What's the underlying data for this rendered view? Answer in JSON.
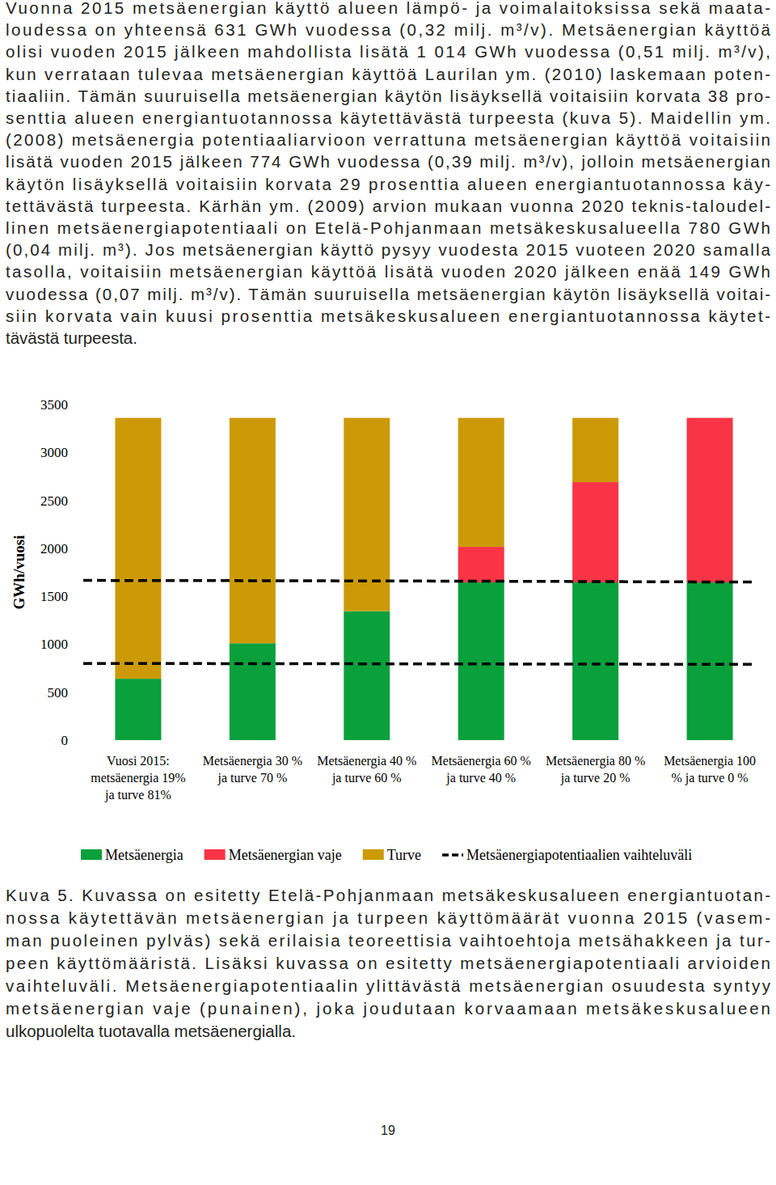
{
  "paragraph": {
    "lines": [
      "Vuonna 2015 metsäenergian käyttö alueen lämpö- ja voimalaitoksissa sekä maata-",
      "loudessa on yhteensä 631 GWh vuodessa (0,32 milj. m³/v). Metsäenergian käyttöä",
      "olisi vuoden 2015 jälkeen mahdollista lisätä 1 014 GWh vuodessa (0,51 milj. m³/v),",
      "kun verrataan tulevaa metsäenergian käyttöä Laurilan ym. (2010) laskemaan poten-",
      "tiaaliin. Tämän suuruisella metsäenergian käytön lisäyksellä voitaisiin korvata 38 pro-",
      "senttia alueen energiantuotannossa käytettävästä turpeesta (kuva 5). Maidellin ym.",
      "(2008) metsäenergia potentiaaliarvioon verrattuna metsäenergian käyttöä voitaisiin",
      "lisätä vuoden 2015 jälkeen 774 GWh vuodessa (0,39 milj. m³/v), jolloin metsäenergian",
      "käytön lisäyksellä voitaisiin korvata 29 prosenttia alueen energiantuotannossa käy-",
      "tettävästä turpeesta. Kärhän ym. (2009) arvion mukaan vuonna 2020 teknis-taloudel-",
      "linen metsäenergiapotentiaali on Etelä-Pohjanmaan metsäkeskusalueella 780 GWh",
      "(0,04 milj. m³). Jos metsäenergian käyttö pysyy vuodesta 2015 vuoteen 2020 samalla",
      "tasolla, voitaisiin metsäenergian käyttöä lisätä vuoden 2020 jälkeen enää 149 GWh",
      "vuodessa (0,07 milj. m³/v). Tämän suuruisella metsäenergian käytön lisäyksellä voitai-",
      "siin korvata vain kuusi prosenttia metsäkeskusalueen energiantuotannossa käytet-",
      "tävästä turpeesta."
    ]
  },
  "chart_data": {
    "type": "bar",
    "stacked": true,
    "y_label": "GWh/vuosi",
    "categories": [
      "Vuosi 2015:\nmetsäenergia 19%\nja turve 81%",
      "Metsäenergia 30 %\nja turve 70 %",
      "Metsäenergia 40 %\nja turve 60 %",
      "Metsäenergia 60 %\nja turve 40 %",
      "Metsäenergia 80 %\nja turve 20 %",
      "Metsäenergia 100\n% ja turve 0 %"
    ],
    "series": [
      {
        "name": "Metsäenergia",
        "color": "#0aa03c",
        "values": [
          640,
          1010,
          1345,
          1645,
          1645,
          1645
        ]
      },
      {
        "name": "Metsäenergian vaje",
        "color": "#f93446",
        "values": [
          0,
          0,
          0,
          370,
          1045,
          1715
        ]
      },
      {
        "name": "Turve",
        "color": "#cc9a06",
        "values": [
          2720,
          2350,
          2015,
          1345,
          670,
          0
        ]
      },
      {
        "name": "Metsäenergiapotentiaalien vaihteluväli",
        "type": "line",
        "line_style": "dashed",
        "color": "#000000",
        "values": [
          800,
          798,
          796,
          794,
          792,
          790
        ],
        "high": [
          1665,
          1663,
          1660,
          1657,
          1652,
          1648
        ]
      }
    ],
    "ylim": [
      0,
      3500
    ],
    "yticks": [
      0,
      500,
      1000,
      1500,
      2000,
      2500,
      3000,
      3500
    ],
    "grid": false,
    "legend": "bottom"
  },
  "caption": {
    "lines": [
      "Kuva 5. Kuvassa on esitetty Etelä-Pohjanmaan metsäkeskusalueen energiantuotan-",
      "nossa käytettävän metsäenergian ja turpeen käyttömäärät vuonna 2015 (vasem-",
      "man puoleinen pylväs) sekä erilaisia teoreettisia vaihtoehtoja metsähakkeen ja tur-",
      "peen käyttömääristä. Lisäksi kuvassa on esitetty metsäenergiapotentiaali arvioiden",
      "vaihteluväli. Metsäenergiapotentiaalin ylittävästä metsäenergian osuudesta syntyy",
      "metsäenergian vaje (punainen), joka joudutaan korvaamaan metsäkeskusalueen",
      "ulkopuolelta tuotavalla metsäenergialla."
    ]
  },
  "page_number": "19"
}
